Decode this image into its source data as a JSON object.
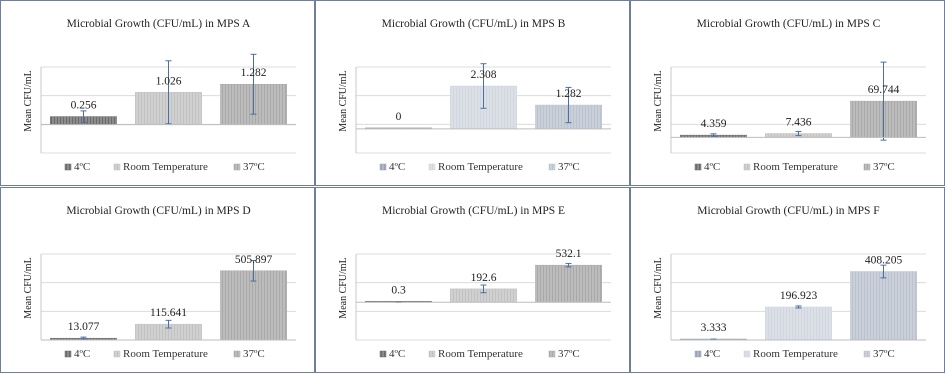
{
  "chart_data": [
    {
      "type": "bar",
      "title": "Microbial Growth (CFU/mL) in MPS A",
      "ylabel": "Mean CFU/mL",
      "categories": [
        "4ºC",
        "Room Temperature",
        "37ºC"
      ],
      "values": [
        0.256,
        1.026,
        1.282
      ],
      "errors": [
        0.18,
        1.0,
        0.95
      ],
      "value_labels": [
        "0.256",
        "1.026",
        "1.282"
      ],
      "ylim": [
        -0.9,
        2.4
      ],
      "grid": true,
      "legend": "bottom",
      "bar_colors": [
        "#6b6b6b",
        "#c2c2c2",
        "#a9a9a9"
      ]
    },
    {
      "type": "bar",
      "title": "Microbial Growth (CFU/mL) in MPS B",
      "ylabel": "Mean CFU/mL",
      "categories": [
        "4ºC",
        "Room Temperature",
        "37ºC"
      ],
      "values": [
        0,
        2.308,
        1.282
      ],
      "errors": [
        0,
        1.2,
        0.95
      ],
      "value_labels": [
        "0",
        "2.308",
        "1.282"
      ],
      "ylim": [
        -1.3,
        4.3
      ],
      "grid": true,
      "legend": "bottom",
      "bar_colors": [
        "#9aa3b5",
        "#d1d6df",
        "#bcc3cf"
      ]
    },
    {
      "type": "bar",
      "title": "Microbial Growth (CFU/mL) in MPS C",
      "ylabel": "Mean CFU/mL",
      "categories": [
        "4ºC",
        "Room Temperature",
        "37ºC"
      ],
      "values": [
        4.359,
        7.436,
        69.744
      ],
      "errors": [
        2.5,
        4.0,
        75
      ],
      "value_labels": [
        "4.359",
        "7.436",
        "69.744"
      ],
      "ylim": [
        -30,
        170
      ],
      "grid": true,
      "legend": "bottom",
      "bar_colors": [
        "#6b6b6b",
        "#c2c2c2",
        "#a9a9a9"
      ]
    },
    {
      "type": "bar",
      "title": "Microbial Growth (CFU/mL) in MPS D",
      "ylabel": "Mean CFU/mL",
      "categories": [
        "4ºC",
        "Room Temperature",
        "37ºC"
      ],
      "values": [
        13.077,
        115.641,
        505.897
      ],
      "errors": [
        8,
        28,
        75
      ],
      "value_labels": [
        "13.077",
        "115.641",
        "505.897"
      ],
      "ylim": [
        0,
        760
      ],
      "grid": true,
      "legend": "bottom",
      "bar_colors": [
        "#6b6b6b",
        "#c2c2c2",
        "#a9a9a9"
      ]
    },
    {
      "type": "bar",
      "title": "Microbial Growth (CFU/mL) in MPS E",
      "ylabel": "Mean CFU/mL",
      "categories": [
        "4ºC",
        "Room Temperature",
        "37ºC"
      ],
      "values": [
        0.3,
        192.6,
        532.1
      ],
      "errors": [
        0.3,
        55,
        25
      ],
      "value_labels": [
        "0.3",
        "192.6",
        "532.1"
      ],
      "ylim": [
        -540,
        950
      ],
      "grid": true,
      "legend": "bottom",
      "bar_colors": [
        "#6b6b6b",
        "#c2c2c2",
        "#a9a9a9"
      ]
    },
    {
      "type": "bar",
      "title": "Microbial Growth (CFU/mL) in MPS F",
      "ylabel": "Mean CFU/mL",
      "categories": [
        "4ºC",
        "Room Temperature",
        "37ºC"
      ],
      "values": [
        3.333,
        196.923,
        408.205
      ],
      "errors": [
        2,
        6,
        38
      ],
      "value_labels": [
        "3.333",
        "196.923",
        "408.205"
      ],
      "ylim": [
        0,
        620
      ],
      "grid": true,
      "legend": "bottom",
      "bar_colors": [
        "#9aa3b5",
        "#d1d6df",
        "#bcc3cf"
      ]
    }
  ]
}
